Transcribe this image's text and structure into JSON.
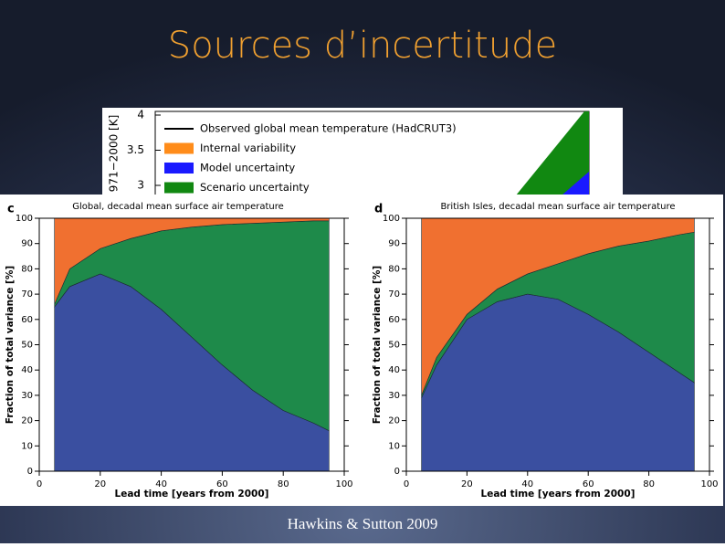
{
  "slide": {
    "title": "Sources d’incertitude",
    "caption": "Hawkins & Sutton 2009"
  },
  "chart_data": [
    {
      "type": "legend",
      "ylabel": "971−2000 [K]",
      "ylim": [
        2.87,
        4
      ],
      "yticks": [
        3,
        3.5,
        4
      ],
      "series": [
        {
          "name": "Observed global mean temperature (HadCRUT3)",
          "color": "#000000"
        },
        {
          "name": "Internal variability",
          "color": "#ff8c1a"
        },
        {
          "name": "Model uncertainty",
          "color": "#1a1aff"
        },
        {
          "name": "Scenario uncertainty",
          "color": "#118811"
        }
      ]
    },
    {
      "type": "stacked_area",
      "panel_label": "c",
      "title": "Global, decadal mean surface air temperature",
      "xlabel": "Lead time  [years from 2000]",
      "ylabel": "Fraction of total variance  [%]",
      "x": [
        5,
        10,
        20,
        30,
        40,
        50,
        60,
        70,
        80,
        90,
        95
      ],
      "xlim": [
        0,
        100
      ],
      "xticks": [
        0,
        20,
        40,
        60,
        80,
        100
      ],
      "ylim": [
        0,
        100
      ],
      "yticks": [
        0,
        10,
        20,
        30,
        40,
        50,
        60,
        70,
        80,
        90,
        100
      ],
      "series": [
        {
          "name": "Model uncertainty",
          "color": "#3a4fa0",
          "values": [
            65,
            73,
            78,
            73,
            64,
            53,
            42,
            32,
            24,
            19,
            16
          ]
        },
        {
          "name": "Scenario uncertainty",
          "color": "#1e8a4a",
          "values": [
            1,
            7,
            10,
            19,
            31,
            43.5,
            55.5,
            66,
            74.5,
            80,
            83
          ]
        },
        {
          "name": "Internal variability",
          "color": "#f07030",
          "values": [
            34,
            20,
            12,
            8,
            5,
            3.5,
            2.5,
            2,
            1.5,
            1,
            1
          ]
        }
      ]
    },
    {
      "type": "stacked_area",
      "panel_label": "d",
      "title": "British Isles, decadal mean surface air temperature",
      "xlabel": "Lead time  [years from 2000]",
      "ylabel": "Fraction of total variance  [%]",
      "x": [
        5,
        10,
        20,
        30,
        40,
        50,
        60,
        70,
        80,
        90,
        95
      ],
      "xlim": [
        0,
        100
      ],
      "xticks": [
        0,
        20,
        40,
        60,
        80,
        100
      ],
      "ylim": [
        0,
        100
      ],
      "yticks": [
        0,
        10,
        20,
        30,
        40,
        50,
        60,
        70,
        80,
        90,
        100
      ],
      "series": [
        {
          "name": "Model uncertainty",
          "color": "#3a4fa0",
          "values": [
            29,
            42,
            60,
            67,
            70,
            68,
            62,
            55,
            47,
            39,
            35
          ]
        },
        {
          "name": "Scenario uncertainty",
          "color": "#1e8a4a",
          "values": [
            1,
            3,
            2,
            5,
            8,
            14,
            24,
            34,
            44,
            54.5,
            59.5
          ]
        },
        {
          "name": "Internal variability",
          "color": "#f07030",
          "values": [
            70,
            55,
            38,
            28,
            22,
            18,
            14,
            11,
            9,
            6.5,
            5.5
          ]
        }
      ]
    }
  ]
}
